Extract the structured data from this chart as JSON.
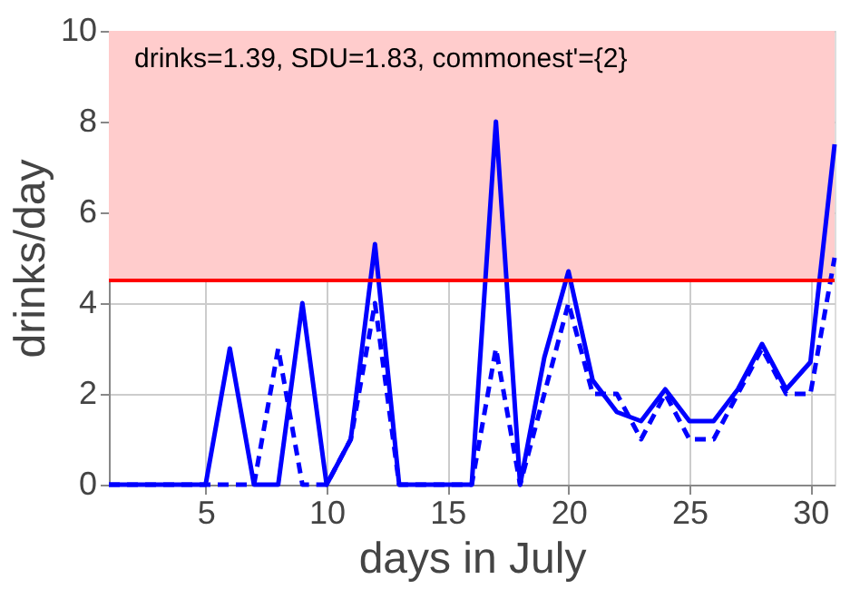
{
  "chart_data": {
    "type": "line",
    "xlabel": "days in July",
    "ylabel": "drinks/day",
    "x": [
      1,
      2,
      3,
      4,
      5,
      6,
      7,
      8,
      9,
      10,
      11,
      12,
      13,
      14,
      15,
      16,
      17,
      18,
      19,
      20,
      21,
      22,
      23,
      24,
      25,
      26,
      27,
      28,
      29,
      30,
      31
    ],
    "series": [
      {
        "color": "#0000ff",
        "line_style": "solid",
        "values": [
          0,
          0,
          0,
          0,
          0,
          3,
          0,
          0,
          4,
          0,
          1,
          5.3,
          0,
          0,
          0,
          0,
          8,
          0,
          2.8,
          4.7,
          2.3,
          1.6,
          1.4,
          2.1,
          1.4,
          1.4,
          2.1,
          3.1,
          2.1,
          2.7,
          7.5
        ]
      },
      {
        "color": "#0000ff",
        "line_style": "dashed",
        "values": [
          0,
          0,
          0,
          0,
          0,
          0,
          0,
          3,
          0,
          0,
          1,
          4,
          0,
          0,
          0,
          0,
          3,
          0,
          2,
          4,
          2,
          2,
          1,
          2,
          1,
          1,
          2,
          3,
          2,
          2,
          5
        ]
      }
    ],
    "xlim": [
      1,
      31
    ],
    "xticks": [
      5,
      10,
      15,
      20,
      25,
      30
    ],
    "ylim": [
      0,
      10
    ],
    "yticks": [
      0,
      2,
      4,
      6,
      8,
      10
    ],
    "grid": true,
    "marker": "none",
    "ref_lines": [
      {
        "axis": "y",
        "value": 4.5,
        "color": "#ff0000"
      }
    ],
    "bands": [
      {
        "axis": "y",
        "from": 4.5,
        "to": 10,
        "color": "#ffcccc"
      }
    ],
    "annotations": [
      "drinks=1.39, SDU=1.83, commonest'={2}"
    ]
  }
}
